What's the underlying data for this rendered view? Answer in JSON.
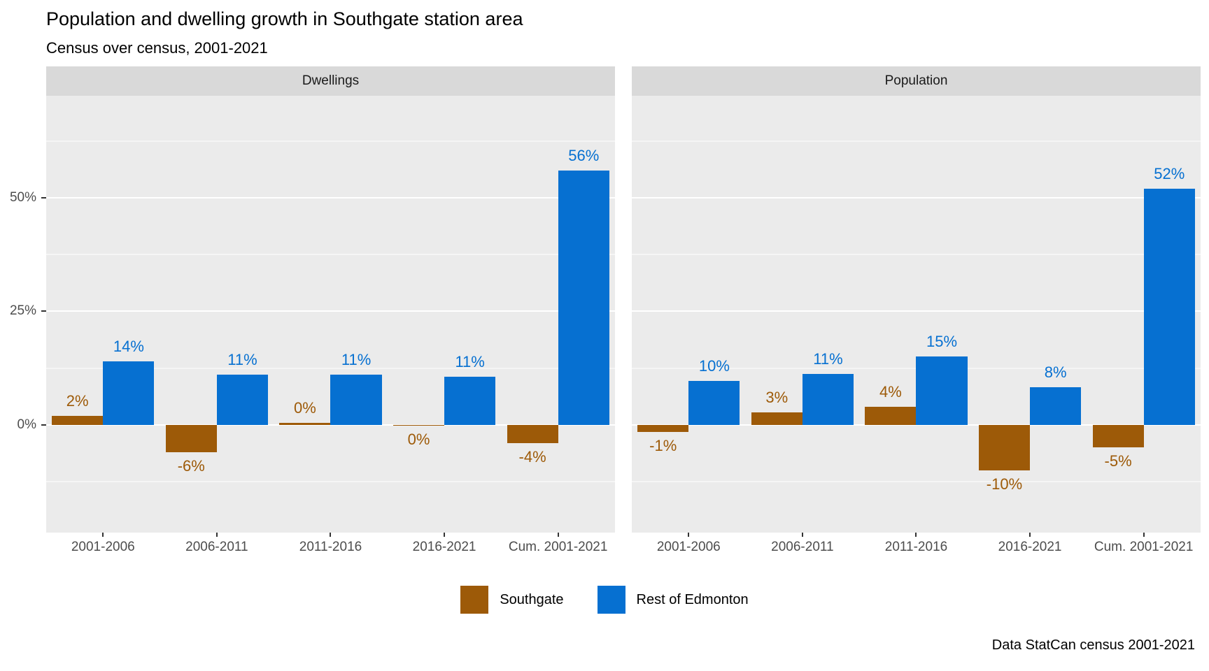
{
  "title": "Population and dwelling growth in Southgate station area",
  "subtitle": "Census over census, 2001-2021",
  "caption": "Data StatCan census 2001-2021",
  "colors": {
    "southgate": "#9d5a08",
    "rest_of_edmonton": "#0670d1",
    "panel_background": "#ebebeb",
    "strip_background": "#d9d9d9",
    "gridline": "#ffffff",
    "axis_text": "#4d4d4d"
  },
  "legend": {
    "items": [
      {
        "label": "Southgate",
        "color": "#9d5a08"
      },
      {
        "label": "Rest of Edmonton",
        "color": "#0670d1"
      }
    ]
  },
  "chart_data": {
    "type": "bar",
    "title": "Population and dwelling growth in Southgate station area",
    "subtitle": "Census over census, 2001-2021",
    "caption": "Data StatCan census 2001-2021",
    "legend_position": "bottom",
    "grid": true,
    "categories": [
      "2001-2006",
      "2006-2011",
      "2011-2016",
      "2016-2021",
      "Cum. 2001-2021"
    ],
    "facets": [
      {
        "label": "Dwellings",
        "series": [
          {
            "name": "Southgate",
            "color": "#9d5a08",
            "values": [
              2,
              -6,
              0.4,
              -0.2,
              -4
            ],
            "labels": [
              "2%",
              "-6%",
              "0%",
              "0%",
              "-4%"
            ]
          },
          {
            "name": "Rest of Edmonton",
            "color": "#0670d1",
            "values": [
              14,
              11,
              11,
              10.6,
              56
            ],
            "labels": [
              "14%",
              "11%",
              "11%",
              "11%",
              "56%"
            ]
          }
        ]
      },
      {
        "label": "Population",
        "series": [
          {
            "name": "Southgate",
            "color": "#9d5a08",
            "values": [
              -1.5,
              2.8,
              3.9,
              -10,
              -5
            ],
            "labels": [
              "-1%",
              "3%",
              "4%",
              "-10%",
              "-5%"
            ]
          },
          {
            "name": "Rest of Edmonton",
            "color": "#0670d1",
            "values": [
              9.7,
              11.2,
              15,
              8.3,
              52
            ],
            "labels": [
              "10%",
              "11%",
              "15%",
              "8%",
              "52%"
            ]
          }
        ]
      }
    ],
    "y_axis": {
      "ticks": [
        "50%",
        "25%",
        "0%"
      ],
      "tick_values": [
        50,
        25,
        0
      ],
      "range": [
        -23.75,
        72.5
      ],
      "major_gridlines": [
        50,
        25,
        0
      ],
      "minor_gridlines": [
        62.5,
        37.5,
        12.5,
        -12.5
      ]
    }
  }
}
